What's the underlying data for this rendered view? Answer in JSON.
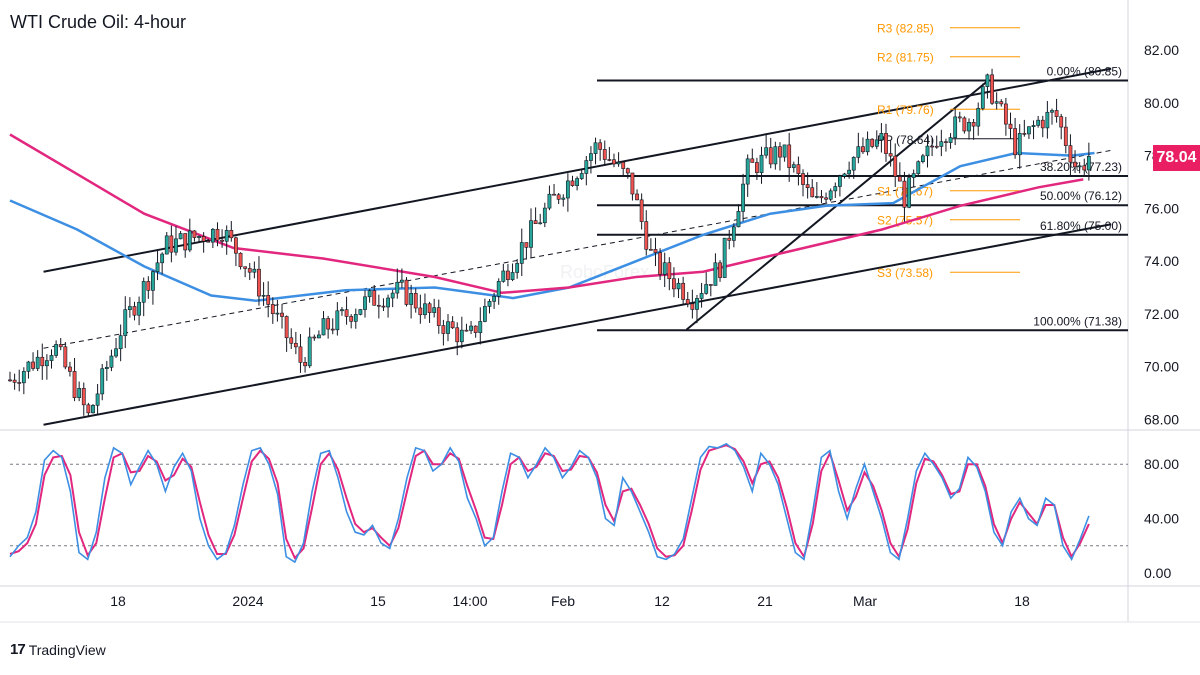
{
  "title": "WTI Crude Oil: 4-hour",
  "watermark": "RoboForex",
  "brand": "TradingView",
  "brand_icon": "tradingview-logo-icon",
  "last_price_label": "78.04",
  "colors": {
    "candle_up": "#26a69a",
    "candle_down": "#ef5350",
    "ma_fast": "#3d8fe3",
    "ma_slow": "#e2277f",
    "pivot": "#ff9800",
    "fib": "#131722",
    "price_badge": "#e91e63",
    "stoch_k": "#3d8fe3",
    "stoch_d": "#e2277f"
  },
  "chart_data": {
    "type": "candlestick",
    "title": "WTI Crude Oil: 4-hour",
    "timeframe": "4-hour",
    "x_tick_labels": [
      "18",
      "2024",
      "15",
      "14:00",
      "Feb",
      "12",
      "21",
      "Mar",
      "18"
    ],
    "price_axis": {
      "ylim": [
        67.6,
        83.9
      ],
      "tick_values": [
        68,
        70,
        72,
        74,
        76,
        78,
        80,
        82
      ],
      "tick_labels": [
        "68.00",
        "70.00",
        "72.00",
        "74.00",
        "76.00",
        "78.00",
        "80.00",
        "82.00"
      ]
    },
    "last_price": 78.04,
    "pivot_levels": [
      {
        "label": "R3 (82.85)",
        "value": 82.85
      },
      {
        "label": "R2 (81.75)",
        "value": 81.75
      },
      {
        "label": "R1 (79.76)",
        "value": 79.76
      },
      {
        "label": "PP (78.64)",
        "value": 78.64
      },
      {
        "label": "S1 (76.67)",
        "value": 76.67
      },
      {
        "label": "S2 (75.57)",
        "value": 75.57
      },
      {
        "label": "S3 (73.58)",
        "value": 73.58
      }
    ],
    "fibonacci_levels": [
      {
        "label": "0.00% (80.85)",
        "value": 80.85
      },
      {
        "label": "38.20% (77.23)",
        "value": 77.23
      },
      {
        "label": "50.00% (76.12)",
        "value": 76.12
      },
      {
        "label": "61.80% (75.00)",
        "value": 75.0
      },
      {
        "label": "100.00% (71.38)",
        "value": 71.38
      }
    ],
    "price_path": [
      [
        0,
        69.5
      ],
      [
        0.04,
        70.8
      ],
      [
        0.07,
        68.1
      ],
      [
        0.1,
        71.5
      ],
      [
        0.14,
        74.6
      ],
      [
        0.19,
        75.2
      ],
      [
        0.215,
        73.6
      ],
      [
        0.26,
        70.2
      ],
      [
        0.28,
        71.4
      ],
      [
        0.32,
        72.5
      ],
      [
        0.35,
        72.9
      ],
      [
        0.38,
        71.8
      ],
      [
        0.41,
        71.0
      ],
      [
        0.44,
        73.4
      ],
      [
        0.48,
        76.0
      ],
      [
        0.525,
        78.4
      ],
      [
        0.555,
        77.0
      ],
      [
        0.575,
        74.0
      ],
      [
        0.61,
        72.6
      ],
      [
        0.635,
        73.8
      ],
      [
        0.66,
        77.5
      ],
      [
        0.69,
        78.2
      ],
      [
        0.72,
        76.1
      ],
      [
        0.75,
        77.8
      ],
      [
        0.78,
        78.6
      ],
      [
        0.8,
        76.4
      ],
      [
        0.83,
        78.8
      ],
      [
        0.86,
        79.4
      ],
      [
        0.875,
        80.7
      ],
      [
        0.9,
        78.3
      ],
      [
        0.92,
        79.3
      ],
      [
        0.935,
        79.6
      ],
      [
        0.955,
        77.4
      ],
      [
        0.965,
        78.0
      ]
    ],
    "moving_averages": [
      {
        "path": [
          [
            0,
            76.3
          ],
          [
            0.06,
            75.2
          ],
          [
            0.12,
            73.8
          ],
          [
            0.18,
            72.7
          ],
          [
            0.22,
            72.5
          ],
          [
            0.3,
            72.9
          ],
          [
            0.38,
            73.0
          ],
          [
            0.45,
            72.6
          ],
          [
            0.5,
            73.0
          ],
          [
            0.56,
            74.0
          ],
          [
            0.62,
            75.0
          ],
          [
            0.68,
            75.8
          ],
          [
            0.73,
            76.1
          ],
          [
            0.79,
            76.2
          ],
          [
            0.85,
            77.6
          ],
          [
            0.9,
            78.1
          ],
          [
            0.95,
            78.0
          ],
          [
            0.97,
            78.1
          ]
        ]
      },
      {
        "path": [
          [
            0,
            78.8
          ],
          [
            0.06,
            77.3
          ],
          [
            0.12,
            75.8
          ],
          [
            0.2,
            74.5
          ],
          [
            0.28,
            74.1
          ],
          [
            0.38,
            73.4
          ],
          [
            0.44,
            72.8
          ],
          [
            0.5,
            73.0
          ],
          [
            0.56,
            73.4
          ],
          [
            0.62,
            73.6
          ],
          [
            0.7,
            74.4
          ],
          [
            0.78,
            75.2
          ],
          [
            0.85,
            76.1
          ],
          [
            0.92,
            76.8
          ],
          [
            0.96,
            77.1
          ]
        ]
      }
    ],
    "trendlines": [
      {
        "p1": [
          0.03,
          73.6
        ],
        "p2": [
          0.985,
          81.3
        ]
      },
      {
        "p1": [
          0.03,
          67.8
        ],
        "p2": [
          0.985,
          75.4
        ]
      },
      {
        "p1": [
          0.03,
          70.7
        ],
        "p2": [
          0.985,
          78.2
        ]
      },
      {
        "p1": [
          0.605,
          71.4
        ],
        "p2": [
          0.875,
          80.85
        ]
      }
    ],
    "stochastic": {
      "ylim": [
        0,
        100
      ],
      "tick_values": [
        0,
        40,
        80
      ],
      "tick_labels": [
        "0.00",
        "40.00",
        "80.00"
      ],
      "overbought": 80,
      "oversold": 20,
      "k": [
        12,
        20,
        26,
        45,
        83,
        90,
        85,
        60,
        15,
        10,
        30,
        70,
        92,
        88,
        65,
        78,
        90,
        80,
        60,
        78,
        88,
        75,
        40,
        20,
        10,
        15,
        35,
        65,
        90,
        92,
        80,
        58,
        12,
        8,
        22,
        60,
        88,
        90,
        70,
        45,
        30,
        28,
        35,
        22,
        18,
        40,
        70,
        92,
        90,
        75,
        80,
        92,
        82,
        55,
        40,
        20,
        26,
        60,
        88,
        85,
        70,
        80,
        92,
        85,
        70,
        78,
        90,
        85,
        70,
        40,
        35,
        70,
        60,
        45,
        30,
        12,
        10,
        14,
        25,
        55,
        85,
        93,
        92,
        95,
        90,
        78,
        60,
        88,
        80,
        65,
        40,
        15,
        10,
        45,
        85,
        90,
        60,
        40,
        62,
        80,
        60,
        40,
        15,
        10,
        40,
        75,
        88,
        80,
        70,
        55,
        62,
        85,
        78,
        60,
        30,
        20,
        45,
        55,
        40,
        35,
        55,
        50,
        20,
        10,
        25,
        42
      ],
      "d": [
        14,
        16,
        22,
        36,
        72,
        85,
        86,
        72,
        30,
        13,
        22,
        55,
        85,
        88,
        74,
        75,
        86,
        82,
        68,
        72,
        84,
        78,
        52,
        28,
        14,
        14,
        28,
        55,
        82,
        90,
        84,
        66,
        25,
        11,
        18,
        48,
        80,
        88,
        76,
        55,
        36,
        30,
        33,
        26,
        20,
        33,
        60,
        86,
        90,
        80,
        80,
        88,
        84,
        64,
        46,
        26,
        25,
        50,
        80,
        85,
        75,
        78,
        88,
        86,
        75,
        76,
        86,
        85,
        74,
        50,
        38,
        60,
        62,
        50,
        36,
        18,
        12,
        13,
        20,
        46,
        76,
        90,
        92,
        94,
        91,
        82,
        66,
        80,
        82,
        70,
        48,
        22,
        12,
        36,
        75,
        88,
        68,
        46,
        56,
        74,
        64,
        46,
        22,
        12,
        32,
        66,
        84,
        82,
        72,
        58,
        60,
        80,
        80,
        64,
        36,
        22,
        40,
        52,
        44,
        36,
        50,
        50,
        26,
        12,
        22,
        36
      ]
    }
  }
}
